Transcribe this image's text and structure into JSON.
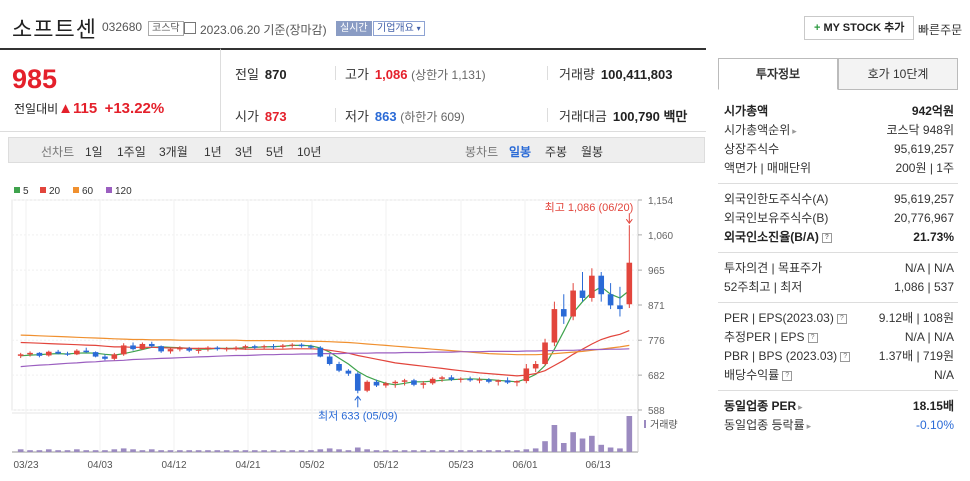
{
  "header": {
    "name": "소프트센",
    "code": "032680",
    "market_tag": "코스닥",
    "date_text": "2023.06.20 기준(장마감)",
    "realtime_label": "실시간",
    "company_btn": "기업개요",
    "mystock_label": "MY STOCK 추가",
    "quick_order": "빠른주문"
  },
  "price": {
    "current": "985",
    "change_label": "전일대비",
    "change_value": "115",
    "change_pct": "+13.22%"
  },
  "stats": {
    "prev_label": "전일",
    "prev": "870",
    "high_label": "고가",
    "high": "1,086",
    "upper": "(상한가 1,131)",
    "volume_label": "거래량",
    "volume": "100,411,803",
    "open_label": "시가",
    "open": "873",
    "low_label": "저가",
    "low": "863",
    "lower": "(하한가 609)",
    "amount_label": "거래대금",
    "amount": "100,790 백만"
  },
  "period": {
    "line_label": "선차트",
    "line_items": [
      "1일",
      "1주일",
      "3개월",
      "1년",
      "3년",
      "5년",
      "10년"
    ],
    "candle_label": "봉차트",
    "candle_items": [
      "일봉",
      "주봉",
      "월봉"
    ],
    "active_candle": "일봉"
  },
  "chart_data": {
    "type": "candlestick",
    "legend": [
      {
        "name": "5",
        "color": "#3fa34d"
      },
      {
        "name": "20",
        "color": "#e2453c"
      },
      {
        "name": "60",
        "color": "#f0902f"
      },
      {
        "name": "120",
        "color": "#9b5fc0"
      }
    ],
    "yticks": [
      "1,154",
      "1,060",
      "965",
      "871",
      "776",
      "682",
      "588"
    ],
    "ylim": [
      588,
      1154
    ],
    "xticks": [
      "03/23",
      "04/03",
      "04/12",
      "04/21",
      "05/02",
      "05/12",
      "05/23",
      "06/01",
      "06/13"
    ],
    "max_label": "최고 1,086 (06/20)",
    "min_label": "최저 633 (05/09)",
    "volume_label": "거래량",
    "candles": [
      [
        734,
        742,
        728,
        738
      ],
      [
        738,
        746,
        732,
        742
      ],
      [
        742,
        744,
        730,
        734
      ],
      [
        735,
        748,
        732,
        745
      ],
      [
        745,
        750,
        738,
        740
      ],
      [
        740,
        745,
        734,
        737
      ],
      [
        738,
        752,
        736,
        748
      ],
      [
        748,
        756,
        742,
        744
      ],
      [
        744,
        746,
        730,
        732
      ],
      [
        732,
        738,
        722,
        726
      ],
      [
        726,
        742,
        722,
        738
      ],
      [
        738,
        768,
        734,
        762
      ],
      [
        762,
        770,
        748,
        752
      ],
      [
        752,
        770,
        750,
        766
      ],
      [
        766,
        772,
        756,
        760
      ],
      [
        760,
        762,
        742,
        746
      ],
      [
        746,
        756,
        740,
        752
      ],
      [
        752,
        760,
        746,
        754
      ],
      [
        754,
        758,
        744,
        748
      ],
      [
        748,
        756,
        740,
        750
      ],
      [
        752,
        760,
        746,
        756
      ],
      [
        756,
        760,
        748,
        752
      ],
      [
        752,
        758,
        746,
        754
      ],
      [
        754,
        760,
        748,
        756
      ],
      [
        756,
        764,
        750,
        760
      ],
      [
        760,
        764,
        752,
        756
      ],
      [
        758,
        764,
        752,
        760
      ],
      [
        760,
        766,
        752,
        758
      ],
      [
        758,
        766,
        754,
        762
      ],
      [
        762,
        768,
        756,
        764
      ],
      [
        764,
        768,
        756,
        760
      ],
      [
        760,
        764,
        752,
        756
      ],
      [
        756,
        760,
        730,
        732
      ],
      [
        732,
        738,
        708,
        712
      ],
      [
        712,
        718,
        690,
        694
      ],
      [
        694,
        698,
        680,
        686
      ],
      [
        686,
        690,
        633,
        640
      ],
      [
        640,
        668,
        636,
        664
      ],
      [
        664,
        670,
        650,
        654
      ],
      [
        654,
        664,
        648,
        660
      ],
      [
        660,
        668,
        648,
        664
      ],
      [
        664,
        672,
        654,
        668
      ],
      [
        668,
        672,
        652,
        656
      ],
      [
        656,
        666,
        646,
        660
      ],
      [
        660,
        676,
        656,
        672
      ],
      [
        672,
        680,
        664,
        676
      ],
      [
        676,
        682,
        666,
        670
      ],
      [
        670,
        676,
        662,
        672
      ],
      [
        672,
        678,
        664,
        668
      ],
      [
        668,
        676,
        660,
        670
      ],
      [
        670,
        674,
        660,
        664
      ],
      [
        664,
        670,
        654,
        668
      ],
      [
        668,
        676,
        658,
        662
      ],
      [
        662,
        668,
        652,
        666
      ],
      [
        666,
        712,
        660,
        700
      ],
      [
        700,
        720,
        690,
        712
      ],
      [
        712,
        780,
        708,
        770
      ],
      [
        770,
        880,
        760,
        860
      ],
      [
        860,
        900,
        820,
        840
      ],
      [
        840,
        930,
        830,
        910
      ],
      [
        910,
        960,
        880,
        890
      ],
      [
        890,
        970,
        880,
        950
      ],
      [
        950,
        960,
        880,
        900
      ],
      [
        900,
        930,
        860,
        870
      ],
      [
        870,
        920,
        840,
        860
      ],
      [
        873,
        1086,
        863,
        985
      ]
    ],
    "volumes": [
      3,
      2,
      2,
      3,
      2,
      2,
      3,
      2,
      2,
      2,
      3,
      4,
      3,
      2,
      3,
      2,
      2,
      2,
      2,
      2,
      2,
      2,
      2,
      2,
      2,
      2,
      2,
      2,
      2,
      2,
      2,
      2,
      3,
      4,
      3,
      2,
      5,
      3,
      2,
      2,
      2,
      2,
      2,
      2,
      2,
      2,
      2,
      2,
      2,
      2,
      2,
      2,
      2,
      2,
      3,
      4,
      12,
      30,
      10,
      22,
      15,
      18,
      8,
      5,
      4,
      40
    ],
    "ma": {
      "ma5": [
        734,
        736,
        737,
        739,
        740,
        739,
        741,
        742,
        741,
        738,
        736,
        740,
        745,
        751,
        757,
        758,
        757,
        756,
        754,
        752,
        752,
        754,
        754,
        754,
        756,
        757,
        758,
        759,
        760,
        762,
        762,
        761,
        755,
        744,
        728,
        712,
        692,
        678,
        668,
        660,
        656,
        660,
        664,
        664,
        666,
        668,
        670,
        671,
        672,
        671,
        670,
        668,
        666,
        664,
        672,
        684,
        708,
        752,
        800,
        850,
        880,
        905,
        920,
        900,
        890,
        910
      ],
      "ma20": [
        770,
        769,
        768,
        767,
        766,
        765,
        764,
        763,
        762,
        760,
        758,
        758,
        757,
        757,
        757,
        756,
        755,
        755,
        754,
        754,
        754,
        754,
        753,
        753,
        752,
        752,
        752,
        752,
        752,
        753,
        753,
        753,
        752,
        749,
        745,
        741,
        735,
        730,
        725,
        720,
        715,
        712,
        709,
        706,
        703,
        700,
        697,
        694,
        691,
        688,
        686,
        684,
        682,
        680,
        682,
        686,
        694,
        708,
        722,
        738,
        752,
        766,
        778,
        786,
        792,
        802
      ],
      "ma60": [
        790,
        789,
        788,
        787,
        786,
        785,
        784,
        783,
        782,
        781,
        780,
        779,
        778,
        778,
        777,
        777,
        777,
        776,
        776,
        776,
        776,
        776,
        776,
        776,
        775,
        775,
        775,
        775,
        774,
        774,
        774,
        773,
        773,
        772,
        771,
        770,
        768,
        766,
        764,
        762,
        760,
        758,
        756,
        754,
        752,
        750,
        748,
        746,
        744,
        742,
        740,
        739,
        738,
        737,
        737,
        737,
        738,
        740,
        742,
        744,
        746,
        749,
        752,
        755,
        758,
        762
      ],
      "ma120": [
        705,
        707,
        709,
        710,
        712,
        714,
        715,
        717,
        718,
        720,
        721,
        722,
        724,
        725,
        726,
        727,
        728,
        729,
        730,
        731,
        732,
        733,
        734,
        735,
        735,
        736,
        737,
        737,
        738,
        738,
        739,
        739,
        740,
        740,
        740,
        741,
        741,
        741,
        742,
        742,
        742,
        743,
        743,
        743,
        744,
        744,
        744,
        745,
        745,
        745,
        746,
        746,
        746,
        746,
        747,
        747,
        748,
        748,
        749,
        749,
        750,
        751,
        751,
        752,
        752,
        753
      ]
    }
  },
  "panel": {
    "tab_invest": "투자정보",
    "tab_quote": "호가 10단계",
    "sections": [
      [
        {
          "k": "시가총액",
          "v": "942억원",
          "bold": true
        },
        {
          "k": "시가총액순위",
          "v": "코스닥 948위",
          "arrow": true
        },
        {
          "k": "상장주식수",
          "v": "95,619,257"
        },
        {
          "k": "액면가 | 매매단위",
          "v": "200원 | 1주"
        }
      ],
      [
        {
          "k": "외국인한도주식수(A)",
          "v": "95,619,257"
        },
        {
          "k": "외국인보유주식수(B)",
          "v": "20,776,967"
        },
        {
          "k": "외국인소진율(B/A)",
          "v": "21.73%",
          "bold": true,
          "q": true
        }
      ],
      [
        {
          "k": "투자의견 | 목표주가",
          "v": "N/A | N/A"
        },
        {
          "k": "52주최고 | 최저",
          "v": "1,086 | 537"
        }
      ],
      [
        {
          "k": "PER | EPS(2023.03)",
          "v": "9.12배 | 108원",
          "q": true
        },
        {
          "k": "추정PER | EPS",
          "v": "N/A | N/A",
          "q": true
        },
        {
          "k": "PBR | BPS (2023.03)",
          "v": "1.37배 | 719원",
          "q": true
        },
        {
          "k": "배당수익률",
          "v": "N/A",
          "q": true
        }
      ],
      [
        {
          "k": "동일업종 PER",
          "v": "18.15배",
          "bold": true,
          "arrow": true
        },
        {
          "k": "동일업종 등락률",
          "v": "-0.10%",
          "arrow": true,
          "blue": true
        }
      ]
    ]
  }
}
